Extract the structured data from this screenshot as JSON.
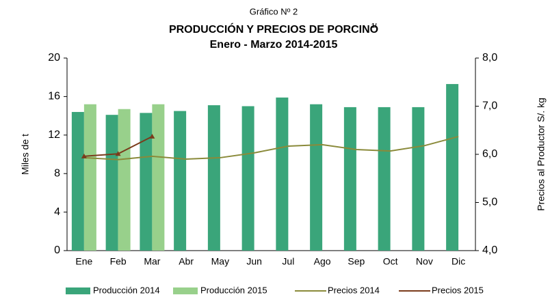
{
  "chart_data": {
    "type": "bar_line",
    "pretitle": "Gráfico Nº 2",
    "title": "PRODUCCIÓN Y PRECIOS DE PORCINO",
    "title_note": "1/",
    "subtitle": "Enero - Marzo 2014-2015",
    "ylabel": "Miles de t",
    "y2label": "Precios al Productor S/.  kg",
    "categories": [
      "Ene",
      "Feb",
      "Mar",
      "Abr",
      "May",
      "Jun",
      "Jul",
      "Ago",
      "Sep",
      "Oct",
      "Nov",
      "Dic"
    ],
    "series": [
      {
        "name": "Producción 2014",
        "kind": "bar",
        "color": "#3aa57a",
        "values": [
          14.4,
          14.1,
          14.3,
          14.5,
          15.1,
          15.0,
          15.9,
          15.2,
          14.9,
          14.9,
          14.9,
          17.3
        ]
      },
      {
        "name": "Producción 2015",
        "kind": "bar",
        "color": "#98d08b",
        "values": [
          15.2,
          14.7,
          15.2,
          null,
          null,
          null,
          null,
          null,
          null,
          null,
          null,
          null
        ]
      },
      {
        "name": "Precios 2014",
        "kind": "line",
        "axis": "y2",
        "color": "#8a8a3a",
        "values": [
          5.93,
          5.89,
          5.96,
          5.9,
          5.93,
          6.03,
          6.17,
          6.2,
          6.1,
          6.07,
          6.18,
          6.37
        ]
      },
      {
        "name": "Precios 2015",
        "kind": "line",
        "axis": "y2",
        "color": "#7a3b1b",
        "marker": "triangle",
        "values": [
          5.96,
          6.01,
          6.37,
          null,
          null,
          null,
          null,
          null,
          null,
          null,
          null,
          null
        ]
      }
    ],
    "ylim": [
      0,
      20
    ],
    "yticks": [
      0,
      4,
      8,
      12,
      16,
      20
    ],
    "y2lim": [
      4,
      8
    ],
    "y2ticks": [
      {
        "value": 4,
        "label": "4,0"
      },
      {
        "value": 5,
        "label": "5,0"
      },
      {
        "value": 6,
        "label": "6,0"
      },
      {
        "value": 7,
        "label": "7,0"
      },
      {
        "value": 8,
        "label": "8,0"
      }
    ]
  }
}
